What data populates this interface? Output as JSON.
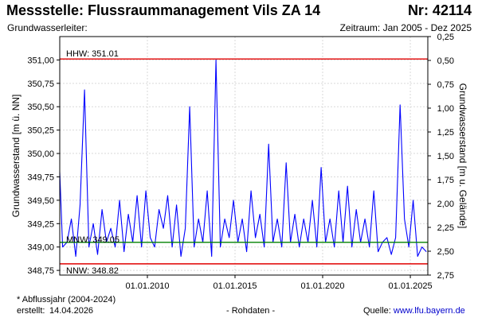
{
  "header": {
    "title": "Messstelle: Flussraummanagement Vils ZA 14",
    "station_nr": "Nr: 42114",
    "aquifer_label": "Grundwasserleiter:",
    "period": "Zeitraum: Jan 2005 - Dez 2025"
  },
  "chart_data": {
    "type": "line",
    "ylabel": "Grundwasserstand [m ü. NN]",
    "ylabel_right": "Grundwasserstand [m u. Gelände]",
    "ylim": [
      348.7,
      351.25
    ],
    "yticks": [
      "348,75",
      "349,00",
      "349,25",
      "349,50",
      "349,75",
      "350,00",
      "350,25",
      "350,50",
      "350,75",
      "351,00"
    ],
    "ylim_right": [
      2.75,
      0.25
    ],
    "yticks_right": [
      "0,25",
      "0,50",
      "0,75",
      "1,00",
      "1,25",
      "1,50",
      "1,75",
      "2,00",
      "2,25",
      "2,50",
      "2,75"
    ],
    "xlim": [
      "2005-01-01",
      "2025-12-31"
    ],
    "xticks": [
      "01.01.2010",
      "01.01.2015",
      "01.01.2020",
      "01.01.2025"
    ],
    "grid": true,
    "reference_lines": [
      {
        "label": "HHW: 351.01",
        "value": 351.01,
        "color": "#e00000"
      },
      {
        "label": "MNW: 349.05",
        "value": 349.05,
        "color": "#008000"
      },
      {
        "label": "NNW: 348.82",
        "value": 348.82,
        "color": "#e00000"
      }
    ],
    "series": [
      {
        "color": "#0000ff",
        "x": [
          "2005-01-01",
          "2005-03-01",
          "2005-06-01",
          "2005-09-01",
          "2005-12-01",
          "2006-03-01",
          "2006-06-01",
          "2006-09-01",
          "2006-12-01",
          "2007-03-01",
          "2007-06-01",
          "2007-09-01",
          "2007-12-01",
          "2008-03-01",
          "2008-06-01",
          "2008-09-01",
          "2008-12-01",
          "2009-03-01",
          "2009-06-01",
          "2009-09-01",
          "2009-12-01",
          "2010-03-01",
          "2010-06-01",
          "2010-09-01",
          "2010-12-01",
          "2011-03-01",
          "2011-06-01",
          "2011-09-01",
          "2011-12-01",
          "2012-03-01",
          "2012-06-01",
          "2012-09-01",
          "2012-12-01",
          "2013-03-01",
          "2013-06-01",
          "2013-09-01",
          "2013-12-01",
          "2014-03-01",
          "2014-06-01",
          "2014-09-01",
          "2014-12-01",
          "2015-03-01",
          "2015-06-01",
          "2015-09-01",
          "2015-12-01",
          "2016-03-01",
          "2016-06-01",
          "2016-09-01",
          "2016-12-01",
          "2017-03-01",
          "2017-06-01",
          "2017-09-01",
          "2017-12-01",
          "2018-03-01",
          "2018-06-01",
          "2018-09-01",
          "2018-12-01",
          "2019-03-01",
          "2019-06-01",
          "2019-09-01",
          "2019-12-01",
          "2020-03-01",
          "2020-06-01",
          "2020-09-01",
          "2020-12-01",
          "2021-03-01",
          "2021-06-01",
          "2021-09-01",
          "2021-12-01",
          "2022-03-01",
          "2022-06-01",
          "2022-09-01",
          "2022-12-01",
          "2023-03-01",
          "2023-06-01",
          "2023-09-01",
          "2023-12-01",
          "2024-03-01",
          "2024-06-01",
          "2024-09-01",
          "2024-12-01",
          "2025-03-01",
          "2025-06-01",
          "2025-09-01",
          "2025-12-01"
        ],
        "values": [
          349.8,
          349.0,
          349.05,
          349.3,
          348.9,
          349.45,
          350.68,
          349.0,
          349.25,
          348.92,
          349.4,
          349.05,
          349.2,
          349.0,
          349.5,
          348.95,
          349.35,
          349.05,
          349.55,
          349.0,
          349.6,
          349.1,
          349.0,
          349.4,
          349.2,
          349.55,
          349.0,
          349.45,
          348.9,
          349.2,
          350.5,
          349.0,
          349.3,
          349.05,
          349.6,
          348.9,
          351.0,
          349.0,
          349.3,
          349.1,
          349.5,
          349.05,
          349.3,
          348.95,
          349.6,
          349.1,
          349.35,
          349.0,
          350.1,
          349.05,
          349.3,
          349.0,
          349.9,
          349.05,
          349.35,
          349.0,
          349.3,
          349.05,
          349.5,
          349.0,
          349.85,
          349.05,
          349.3,
          349.0,
          349.6,
          349.05,
          349.65,
          349.0,
          349.4,
          349.05,
          349.3,
          349.0,
          349.6,
          348.95,
          349.05,
          349.1,
          348.92,
          349.1,
          350.52,
          349.3,
          349.0,
          349.5,
          348.9,
          349.0,
          348.95
        ]
      }
    ]
  },
  "footer": {
    "footnote": "* Abflussjahr (2004-2024)",
    "created_label": "erstellt:",
    "created_date": "14.04.2026",
    "data_type": "- Rohdaten -",
    "source_label": "Quelle:",
    "source_url": "www.lfu.bayern.de"
  }
}
